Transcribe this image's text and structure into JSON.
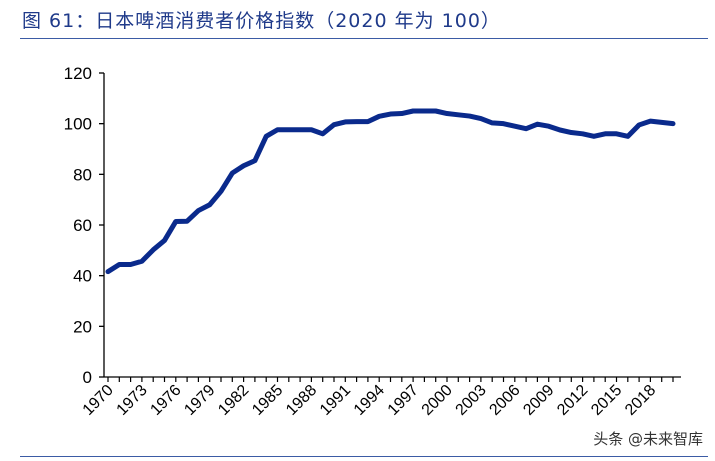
{
  "title": "图 61：日本啤酒消费者价格指数（2020 年为 100）",
  "watermark": "头条 @未来智库",
  "chart_data": {
    "type": "line",
    "title": "图 61：日本啤酒消费者价格指数（2020 年为 100）",
    "xlabel": "",
    "ylabel": "",
    "ylim": [
      0,
      120
    ],
    "yticks": [
      0,
      20,
      40,
      60,
      80,
      100,
      120
    ],
    "xtick_labels": [
      "1970",
      "1973",
      "1976",
      "1979",
      "1982",
      "1985",
      "1988",
      "1991",
      "1994",
      "1997",
      "2000",
      "2003",
      "2006",
      "2009",
      "2012",
      "2015",
      "2018"
    ],
    "grid": false,
    "line_color": "#0a2a8c",
    "x": [
      1970,
      1971,
      1972,
      1973,
      1974,
      1975,
      1976,
      1977,
      1978,
      1979,
      1980,
      1981,
      1982,
      1983,
      1984,
      1985,
      1986,
      1987,
      1988,
      1989,
      1990,
      1991,
      1992,
      1993,
      1994,
      1995,
      1996,
      1997,
      1998,
      1999,
      2000,
      2001,
      2002,
      2003,
      2004,
      2005,
      2006,
      2007,
      2008,
      2009,
      2010,
      2011,
      2012,
      2013,
      2014,
      2015,
      2016,
      2017,
      2018,
      2019,
      2020
    ],
    "values": [
      41.6,
      44.4,
      44.4,
      45.7,
      50.2,
      53.9,
      61.4,
      61.5,
      65.7,
      68,
      73.3,
      80.5,
      83.4,
      85.4,
      95,
      97.6,
      97.6,
      97.6,
      97.6,
      96,
      99.6,
      100.7,
      100.8,
      100.8,
      102.9,
      103.8,
      104,
      105,
      105,
      105,
      104,
      103.5,
      103,
      102,
      100.3,
      100,
      99,
      98,
      99.8,
      99,
      97.5,
      96.5,
      96,
      95,
      96,
      96,
      95,
      99.5,
      101,
      100.5,
      100
    ]
  }
}
